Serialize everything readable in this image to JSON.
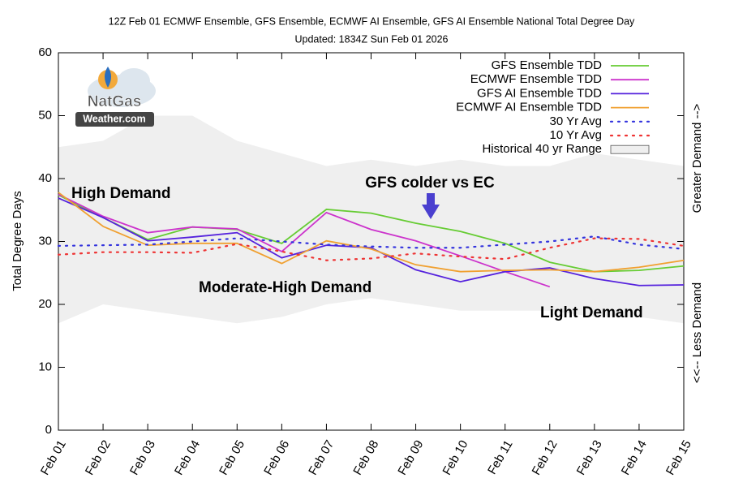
{
  "chart_data": {
    "type": "line",
    "title": "12Z Feb 01 ECMWF Ensemble, GFS Ensemble, ECMWF AI Ensemble, GFS AI Ensemble National Total Degree Day",
    "subtitle": "Updated: 1834Z Sun Feb 01 2026",
    "ylabel": "Total Degree Days",
    "categories": [
      "Feb 01",
      "Feb 02",
      "Feb 03",
      "Feb 04",
      "Feb 05",
      "Feb 06",
      "Feb 07",
      "Feb 08",
      "Feb 09",
      "Feb 10",
      "Feb 11",
      "Feb 12",
      "Feb 13",
      "Feb 14",
      "Feb 15"
    ],
    "ylim": [
      0,
      60
    ],
    "yticks": [
      0,
      10,
      20,
      30,
      40,
      50,
      60
    ],
    "legend": "upper right",
    "series": [
      {
        "name": "GFS Ensemble TDD",
        "color": "#66cc33",
        "style": "solid",
        "values": [
          37.4,
          33.8,
          30.3,
          32.3,
          31.9,
          29.7,
          35.1,
          34.5,
          32.9,
          31.6,
          29.7,
          26.7,
          25.2,
          25.4,
          26.1
        ]
      },
      {
        "name": "ECMWF Ensemble TDD",
        "color": "#cc33cc",
        "style": "solid",
        "values": [
          37.5,
          34.0,
          31.4,
          32.3,
          32.0,
          28.4,
          34.6,
          31.9,
          30.1,
          27.7,
          25.2,
          22.8,
          null,
          null,
          null
        ]
      },
      {
        "name": "GFS AI Ensemble TDD",
        "color": "#5522dd",
        "style": "solid",
        "values": [
          36.9,
          33.8,
          30.1,
          30.7,
          31.4,
          27.4,
          29.4,
          29.0,
          25.5,
          23.6,
          25.2,
          25.8,
          24.1,
          23.0,
          23.1
        ]
      },
      {
        "name": "ECMWF AI Ensemble TDD",
        "color": "#f0a030",
        "style": "solid",
        "values": [
          37.8,
          32.4,
          29.4,
          29.7,
          29.7,
          26.5,
          30.1,
          28.8,
          26.3,
          25.2,
          25.4,
          25.5,
          25.2,
          25.9,
          27.0
        ]
      },
      {
        "name": "30 Yr Avg",
        "color": "#3333dd",
        "style": "dotted",
        "values": [
          29.3,
          29.4,
          29.5,
          30.0,
          30.5,
          30.0,
          29.5,
          29.2,
          29.0,
          29.0,
          29.5,
          30.0,
          30.8,
          29.5,
          28.8
        ]
      },
      {
        "name": "10 Yr Avg",
        "color": "#ee3333",
        "style": "dotted",
        "values": [
          27.9,
          28.3,
          28.3,
          28.2,
          29.6,
          28.4,
          27.0,
          27.3,
          28.1,
          27.6,
          27.2,
          29.0,
          30.5,
          30.4,
          29.3
        ]
      }
    ],
    "range": {
      "name": "Historical 40 yr Range",
      "color": "#efefef",
      "upper": [
        45,
        46,
        50,
        50,
        46,
        44,
        42,
        43,
        42,
        43,
        42,
        42,
        44,
        43,
        42
      ],
      "lower": [
        17,
        20,
        19,
        18,
        17,
        18,
        20,
        21,
        20,
        19,
        19,
        19,
        18,
        18,
        17
      ]
    },
    "annotations": [
      {
        "text": "High Demand",
        "color": "#1aa0e0"
      },
      {
        "text": "GFS colder vs EC",
        "color": "#4a3fcf"
      },
      {
        "text": "Moderate-High Demand",
        "color": "#33bb44"
      },
      {
        "text": "Light Demand",
        "color": "#f08a30"
      }
    ],
    "right_labels": [
      "Greater Demand -->",
      "<<-- Less Demand"
    ],
    "logo": [
      "NatGas",
      "Weather.com"
    ]
  }
}
